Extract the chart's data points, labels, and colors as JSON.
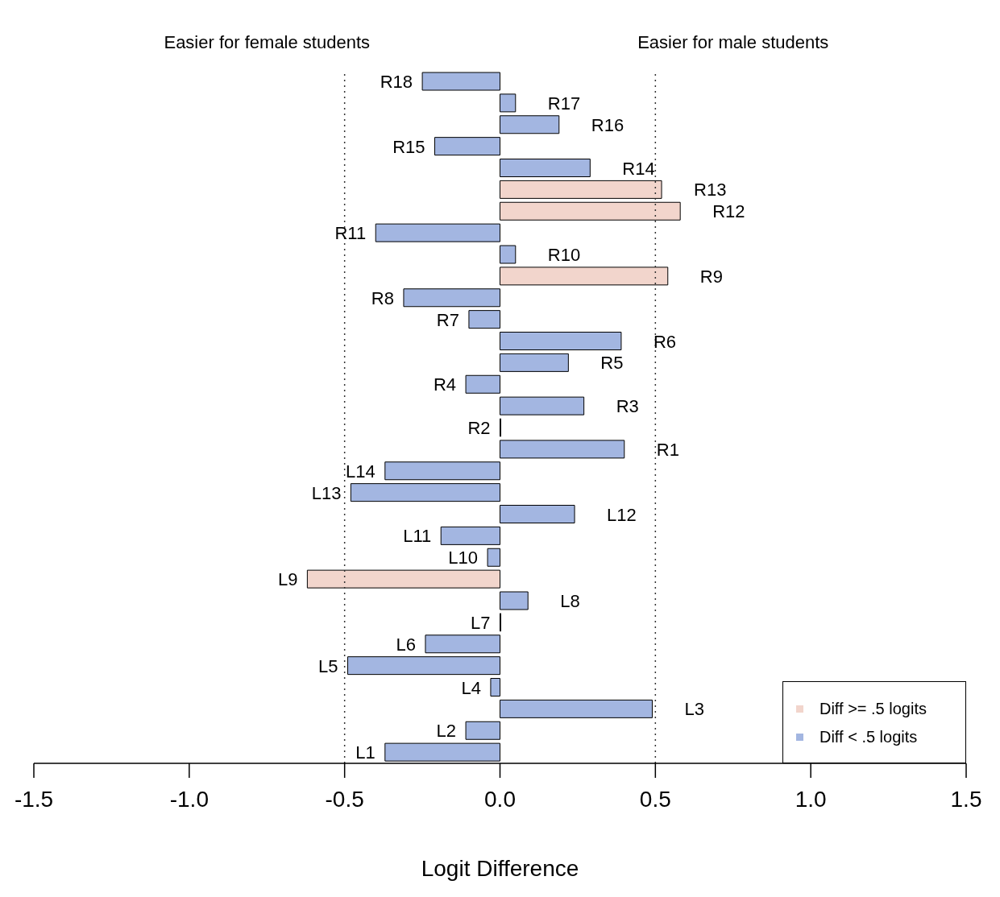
{
  "chart_data": {
    "type": "bar",
    "orientation": "horizontal",
    "stacked": true,
    "xlabel": "Logit Difference",
    "annotations": [
      "Easier for female students",
      "Easier for male students"
    ],
    "categories": [
      "R18",
      "R17",
      "R16",
      "R15",
      "R14",
      "R13",
      "R12",
      "R11",
      "R10",
      "R9",
      "R8",
      "R7",
      "R6",
      "R5",
      "R4",
      "R3",
      "R2",
      "R1",
      "L14",
      "L13",
      "L12",
      "L11",
      "L10",
      "L9",
      "L8",
      "L7",
      "L6",
      "L5",
      "L4",
      "L3",
      "L2",
      "L1"
    ],
    "series": [
      {
        "name": "Diff >= .5 logits",
        "color": "#f2d5cc",
        "values": [
          null,
          null,
          null,
          null,
          null,
          0.52,
          0.58,
          null,
          null,
          0.54,
          null,
          null,
          null,
          null,
          null,
          null,
          null,
          null,
          null,
          null,
          null,
          null,
          null,
          -0.62,
          null,
          null,
          null,
          null,
          null,
          null,
          null,
          null
        ]
      },
      {
        "name": "Diff < .5 logits",
        "color": "#a3b6e1",
        "values": [
          -0.25,
          0.05,
          0.19,
          -0.21,
          0.29,
          null,
          null,
          -0.4,
          0.05,
          null,
          -0.31,
          -0.1,
          0.39,
          0.22,
          -0.11,
          0.27,
          0,
          0.4,
          -0.37,
          -0.48,
          0.24,
          -0.19,
          -0.04,
          null,
          0.09,
          0,
          -0.24,
          -0.49,
          -0.03,
          0.49,
          -0.11,
          -0.37
        ]
      }
    ],
    "xlim": [
      -1.5,
      1.5
    ],
    "xticks": [
      {
        "value": -1.5,
        "label": "-1.5"
      },
      {
        "value": -1,
        "label": "-1.0"
      },
      {
        "value": -0.5,
        "label": "-0.5"
      },
      {
        "value": 0,
        "label": "0.0"
      },
      {
        "value": 0.5,
        "label": "0.5"
      },
      {
        "value": 1,
        "label": "1.0"
      },
      {
        "value": 1.5,
        "label": "1.5"
      }
    ],
    "ref_lines": [
      {
        "axis": "x",
        "value": -0.5,
        "line_style": "dotted"
      },
      {
        "axis": "x",
        "value": 0.5,
        "line_style": "dotted"
      }
    ],
    "grid": false,
    "legend": "bottom right"
  }
}
